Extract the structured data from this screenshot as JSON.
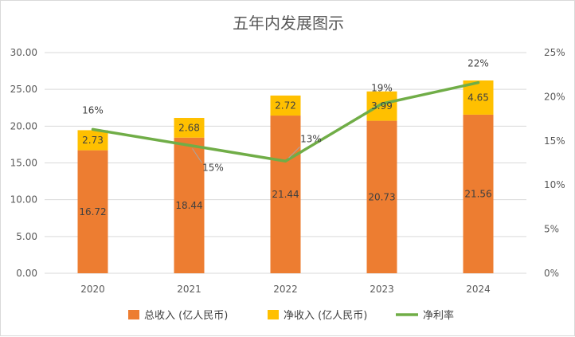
{
  "chart_data": {
    "type": "bar",
    "title": "五年内发展图示",
    "categories": [
      "2020",
      "2021",
      "2022",
      "2023",
      "2024"
    ],
    "series": [
      {
        "name": "总收入 (亿人民币)",
        "type": "bar",
        "stack": "revenue",
        "axis": "left",
        "color": "#ED7D31",
        "values": [
          16.72,
          18.44,
          21.44,
          20.73,
          21.56
        ],
        "labels": [
          "16.72",
          "18.44",
          "21.44",
          "20.73",
          "21.56"
        ]
      },
      {
        "name": "净收入 (亿人民币)",
        "type": "bar",
        "stack": "revenue",
        "axis": "left",
        "color": "#FFC000",
        "values": [
          2.73,
          2.68,
          2.72,
          3.99,
          4.65
        ],
        "labels": [
          "2.73",
          "2.68",
          "2.72",
          "3.99",
          "4.65"
        ]
      },
      {
        "name": "净利率",
        "type": "line",
        "axis": "right",
        "color": "#70AD47",
        "values": [
          0.163,
          0.145,
          0.127,
          0.192,
          0.216
        ],
        "labels": [
          "16%",
          "15%",
          "13%",
          "19%",
          "22%"
        ]
      }
    ],
    "y_left": {
      "ylim": [
        0,
        30
      ],
      "ticks": [
        "0.00",
        "5.00",
        "10.00",
        "15.00",
        "20.00",
        "25.00",
        "30.00"
      ]
    },
    "y_right": {
      "ylim": [
        0,
        0.25
      ],
      "ticks": [
        "0%",
        "5%",
        "10%",
        "15%",
        "20%",
        "25%"
      ]
    },
    "grid": true,
    "legend_position": "bottom"
  }
}
